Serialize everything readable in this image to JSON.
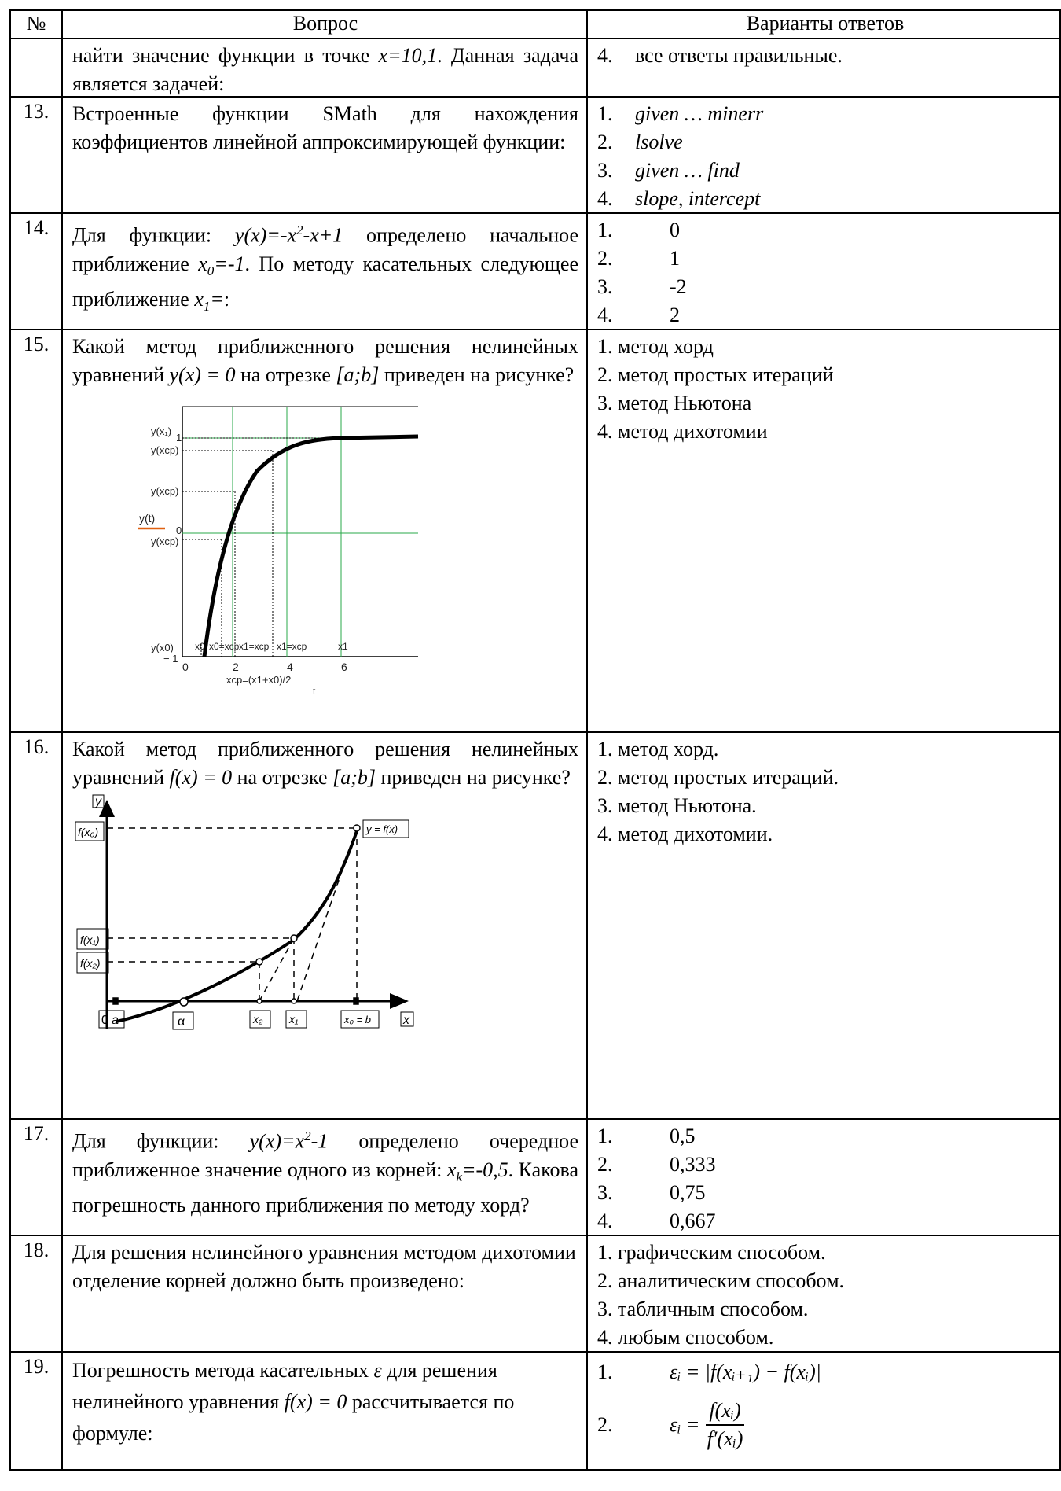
{
  "header": {
    "num": "№",
    "question": "Вопрос",
    "answers": "Варианты ответов"
  },
  "q12": {
    "text_a": "найти значение функции в точке ",
    "text_x": "x=10,1",
    "text_b": ". Данная задача является задачей:",
    "answer_num": "4.",
    "answer": "все ответы правильные."
  },
  "q13": {
    "num": "13.",
    "text": "Встроенные функции SMath для нахождения коэффициентов линейной аппроксимирующей функции:",
    "answers": [
      {
        "n": "1.",
        "v": "given … minerr"
      },
      {
        "n": "2.",
        "v": "lsolve"
      },
      {
        "n": "3.",
        "v": "given … find"
      },
      {
        "n": "4.",
        "v": "slope, intercept"
      }
    ]
  },
  "q14": {
    "num": "14.",
    "text_a": "Для функции: ",
    "func_a": "y(x)=-x",
    "func_sup": "2",
    "func_b": "-x+1",
    "text_b": " определено начальное приближение ",
    "x0": "x",
    "x0_sub": "0",
    "x0_val": "=-1",
    "text_c": ". По методу касательных следующее приближение ",
    "x1": "x",
    "x1_sub": "1",
    "x1_val": "=",
    "text_d": ":",
    "answers": [
      {
        "n": "1.",
        "v": "0"
      },
      {
        "n": "2.",
        "v": "1"
      },
      {
        "n": "3.",
        "v": "-2"
      },
      {
        "n": "4.",
        "v": "2"
      }
    ]
  },
  "q15": {
    "num": "15.",
    "text_a": "Какой метод приближенного решения нелинейных уравнений ",
    "eq": "y(x) = 0",
    "text_b": " на отрезке ",
    "interval": "[a;b]",
    "text_c": " приведен на рисунке?",
    "answers": [
      "1. метод хорд",
      "2. метод простых итераций",
      "3. метод Ньютона",
      "4. метод дихотомии"
    ],
    "figure": {
      "ylabels": [
        "y(x₁)",
        "y(xₚ)",
        "y(xₚ)",
        "y(xₚ)",
        "y(x₀)"
      ],
      "ylabel_top": "y(x₁)",
      "ylabel_2": "y(xcp)",
      "ylabel_3": "y(xcp)",
      "ylabel_4": "y(xcp)",
      "ylabel_5": "y(x0)",
      "legend": "y(t)",
      "tick_1": "1",
      "tick_0": "0",
      "tick_m1": "− 1",
      "xticks": [
        "0",
        "2",
        "4",
        "6"
      ],
      "bottom_labels": [
        "x0",
        "x0=xcp",
        "x1=xcp",
        "x1=xcp",
        "x1"
      ],
      "formula": "xcp=(x1+x0)/2",
      "xaxis": "t"
    }
  },
  "q16": {
    "num": "16.",
    "text_a": "Какой метод приближенного решения нелинейных уравнений ",
    "eq": "f(x) = 0",
    "text_b": " на отрезке ",
    "interval": "[a;b]",
    "text_c": " приведен на рисунке?",
    "answers": [
      "1. метод хорд.",
      "2. метод простых итераций.",
      "3. метод Ньютона.",
      "4. метод дихотомии."
    ],
    "figure": {
      "y": "y",
      "x": "x",
      "fx0": "f(x₀)",
      "fx1": "f(x₁)",
      "fx2": "f(x₂)",
      "curve": "y = f(x)",
      "origin": "0",
      "a": "a",
      "alpha": "α",
      "x2": "x₂",
      "x1": "x₁",
      "x0b": "x₀ = b"
    }
  },
  "q17": {
    "num": "17.",
    "text_a": "Для функции: ",
    "func_a": "y(x)=x",
    "func_sup": "2",
    "func_b": "-1",
    "text_b": " определено очередное приближенное значение одного из корней: ",
    "xk": "x",
    "xk_sub": "k",
    "xk_val": "=-0,5",
    "text_c": ". Какова погрешность данного приближения по методу хорд?",
    "answers": [
      {
        "n": "1.",
        "v": "0,5"
      },
      {
        "n": "2.",
        "v": "0,333"
      },
      {
        "n": "3.",
        "v": "0,75"
      },
      {
        "n": "4.",
        "v": "0,667"
      }
    ]
  },
  "q18": {
    "num": "18.",
    "text": "Для решения нелинейного уравнения методом дихотомии отделение корней должно быть произведено:",
    "answers": [
      "1. графическим способом.",
      "2. аналитическим способом.",
      "3. табличным способом.",
      "4. любым способом."
    ]
  },
  "q19": {
    "num": "19.",
    "text_a": "Погрешность метода касательных ",
    "eps": "ε",
    "text_b": " для решения нелинейного уравнения ",
    "eq": "f(x) = 0",
    "text_c": " рассчитывается по формуле:",
    "answers": [
      {
        "n": "1.",
        "lhs": "εᵢ =",
        "formula": "|f(xᵢ₊₁) − f(xᵢ)|"
      },
      {
        "n": "2.",
        "lhs": "εᵢ =",
        "num": "f(xᵢ)",
        "den": "f′(xᵢ)"
      }
    ]
  }
}
